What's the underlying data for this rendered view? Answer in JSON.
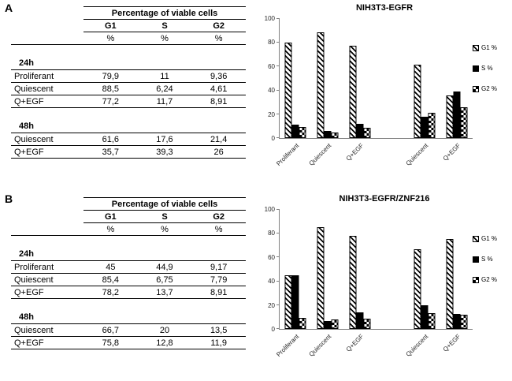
{
  "panels": [
    {
      "label": "A",
      "table": {
        "title": "Percentage of viable cells",
        "columns": [
          "G1",
          "S",
          "G2"
        ],
        "unit_row": [
          "%",
          "%",
          "%"
        ],
        "sections": [
          {
            "time": "24h",
            "rows": [
              {
                "name": "Proliferant",
                "values": [
                  "79,9",
                  "11",
                  "9,36"
                ]
              },
              {
                "name": "Quiescent",
                "values": [
                  "88,5",
                  "6,24",
                  "4,61"
                ]
              },
              {
                "name": "Q+EGF",
                "values": [
                  "77,2",
                  "11,7",
                  "8,91"
                ]
              }
            ]
          },
          {
            "time": "48h",
            "rows": [
              {
                "name": "Quiescent",
                "values": [
                  "61,6",
                  "17,6",
                  "21,4"
                ]
              },
              {
                "name": "Q+EGF",
                "values": [
                  "35,7",
                  "39,3",
                  "26"
                ]
              }
            ]
          }
        ]
      }
    },
    {
      "label": "B",
      "table": {
        "title": "Percentage of viable cells",
        "columns": [
          "G1",
          "S",
          "G2"
        ],
        "unit_row": [
          "%",
          "%",
          "%"
        ],
        "sections": [
          {
            "time": "24h",
            "rows": [
              {
                "name": "Proliferant",
                "values": [
                  "45",
                  "44,9",
                  "9,17"
                ]
              },
              {
                "name": "Quiescent",
                "values": [
                  "85,4",
                  "6,75",
                  "7,79"
                ]
              },
              {
                "name": "Q+EGF",
                "values": [
                  "78,2",
                  "13,7",
                  "8,91"
                ]
              }
            ]
          },
          {
            "time": "48h",
            "rows": [
              {
                "name": "Quiescent",
                "values": [
                  "66,7",
                  "20",
                  "13,5"
                ]
              },
              {
                "name": "Q+EGF",
                "values": [
                  "75,8",
                  "12,8",
                  "11,9"
                ]
              }
            ]
          }
        ]
      }
    }
  ],
  "chart_data": [
    {
      "type": "bar",
      "title": "NIH3T3-EGFR",
      "categories": [
        "Proliferant",
        "Quiescent",
        "Q+EGF",
        "Quiescent",
        "Q+EGF"
      ],
      "gap_after_category_index": 2,
      "series": [
        {
          "name": "G1 %",
          "pattern": "diagonal-hatch",
          "values": [
            79.9,
            88.5,
            77.2,
            61.6,
            35.7
          ]
        },
        {
          "name": "S %",
          "pattern": "solid-black",
          "values": [
            11,
            6.24,
            11.7,
            17.6,
            39.3
          ]
        },
        {
          "name": "G2 %",
          "pattern": "checker",
          "values": [
            9.36,
            4.61,
            8.91,
            21.4,
            26
          ]
        }
      ],
      "xlabel": "",
      "ylabel": "",
      "ylim": [
        0,
        100
      ],
      "yticks": [
        0,
        20,
        40,
        60,
        80,
        100
      ],
      "grid": false,
      "legend_position": "right",
      "bar_colors": {
        "fill": "#000000",
        "background": "#ffffff"
      }
    },
    {
      "type": "bar",
      "title": "NIH3T3-EGFR/ZNF216",
      "categories": [
        "Proliferant",
        "Quiescent",
        "Q+EGF",
        "Quiescent",
        "Q+EGF"
      ],
      "gap_after_category_index": 2,
      "series": [
        {
          "name": "G1 %",
          "pattern": "diagonal-hatch",
          "values": [
            45,
            85.4,
            78.2,
            66.7,
            75.8
          ]
        },
        {
          "name": "S %",
          "pattern": "solid-black",
          "values": [
            44.9,
            6.75,
            13.7,
            20,
            12.8
          ]
        },
        {
          "name": "G2 %",
          "pattern": "checker",
          "values": [
            9.17,
            7.79,
            8.91,
            13.5,
            11.9
          ]
        }
      ],
      "xlabel": "",
      "ylabel": "",
      "ylim": [
        0,
        100
      ],
      "yticks": [
        0,
        20,
        40,
        60,
        80,
        100
      ],
      "grid": false,
      "legend_position": "right",
      "bar_colors": {
        "fill": "#000000",
        "background": "#ffffff"
      }
    }
  ]
}
